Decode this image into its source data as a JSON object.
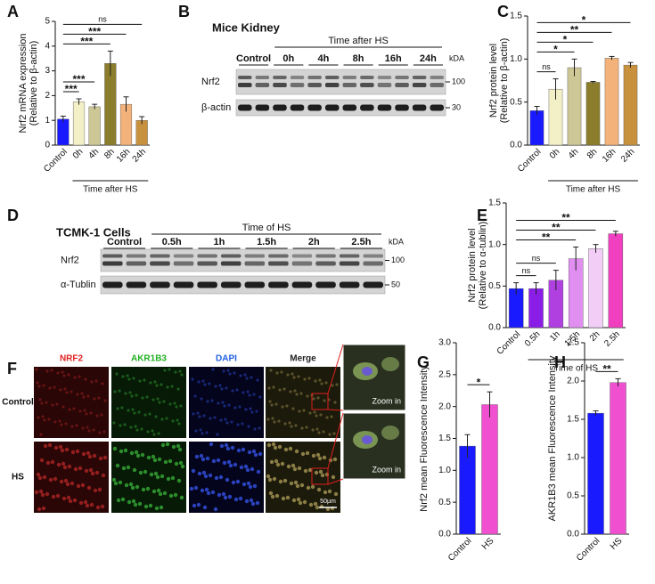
{
  "panels": [
    "A",
    "B",
    "C",
    "D",
    "E",
    "F",
    "G",
    "H"
  ],
  "chart_data": [
    {
      "type": "bar",
      "ylabel": [
        "Nrf2 mRNA expression",
        "(Relative to β-actin)"
      ],
      "categories": [
        "Control",
        "0h",
        "4h",
        "8h",
        "16h",
        "24h"
      ],
      "values": [
        1.05,
        1.75,
        1.55,
        3.3,
        1.65,
        1.0
      ],
      "errors": [
        0.12,
        0.12,
        0.1,
        0.5,
        0.3,
        0.15
      ],
      "colors": [
        "#1a1aff",
        "#f3efc6",
        "#cdc795",
        "#8b7d2b",
        "#f2b27a",
        "#c8913e"
      ],
      "ylim": [
        0,
        5
      ],
      "yticks": [
        0,
        1,
        2,
        3,
        4,
        5
      ],
      "group_label": "Time after HS",
      "annotations": [
        {
          "label": "ns",
          "to": "24h"
        },
        {
          "label": "***",
          "to": "16h"
        },
        {
          "label": "***",
          "to": "8h"
        },
        {
          "label": "***",
          "to": "4h"
        },
        {
          "label": "***",
          "to": "0h"
        }
      ]
    },
    {
      "type": "bar",
      "ylabel": [
        "Nrf2 protein level",
        "(Relative to β-actin)"
      ],
      "categories": [
        "Control",
        "0h",
        "4h",
        "8h",
        "16h",
        "24h"
      ],
      "values": [
        0.4,
        0.65,
        0.9,
        0.73,
        1.01,
        0.93
      ],
      "errors": [
        0.05,
        0.12,
        0.1,
        0.01,
        0.02,
        0.03
      ],
      "colors": [
        "#1a1aff",
        "#f3efc6",
        "#cdc795",
        "#8b7d2b",
        "#f2b27a",
        "#c8913e"
      ],
      "ylim": [
        0,
        1.5
      ],
      "yticks": [
        {
          "value": 0,
          "label": "0.0"
        },
        {
          "value": 0.5,
          "label": "0.5"
        },
        {
          "value": 1,
          "label": "1.0"
        },
        {
          "value": 1.5,
          "label": "1.5"
        }
      ],
      "group_label": "Time after HS",
      "annotations": [
        {
          "label": "*",
          "to": "24h"
        },
        {
          "label": "**",
          "to": "16h"
        },
        {
          "label": "*",
          "to": "8h"
        },
        {
          "label": "*",
          "to": "4h"
        },
        {
          "label": "ns",
          "to": "0h"
        }
      ]
    },
    {
      "type": "bar",
      "ylabel": [
        "Nrf2 protein level",
        "(Relative to α-tublin)"
      ],
      "categories": [
        "Control",
        "0.5h",
        "1h",
        "1.5h",
        "2h",
        "2.5h"
      ],
      "values": [
        0.47,
        0.47,
        0.57,
        0.83,
        0.95,
        1.13
      ],
      "errors": [
        0.07,
        0.07,
        0.12,
        0.14,
        0.05,
        0.03
      ],
      "colors": [
        "#1a1aff",
        "#8a1ee6",
        "#b040e0",
        "#e08ef0",
        "#f2cdf6",
        "#f040c0"
      ],
      "ylim": [
        0,
        1.5
      ],
      "yticks": [
        {
          "value": 0,
          "label": "0.0"
        },
        {
          "value": 0.5,
          "label": "0.5"
        },
        {
          "value": 1,
          "label": "1.0"
        },
        {
          "value": 1.5,
          "label": "1.5"
        }
      ],
      "group_label": "Time of HS",
      "annotations": [
        {
          "label": "**",
          "to": "2.5h"
        },
        {
          "label": "**",
          "to": "2h"
        },
        {
          "label": "**",
          "to": "1.5h"
        },
        {
          "label": "ns",
          "to": "1h"
        },
        {
          "label": "ns",
          "to": "0.5h"
        }
      ]
    },
    {
      "type": "bar",
      "ylabel": [
        "Nrf2 mean Fluorescence Intensity"
      ],
      "categories": [
        "Control",
        "HS"
      ],
      "values": [
        1.38,
        2.03
      ],
      "errors": [
        0.18,
        0.2
      ],
      "colors": [
        "#1a1aff",
        "#f050d0"
      ],
      "ylim": [
        0,
        3
      ],
      "yticks": [
        {
          "value": 0,
          "label": "0.0"
        },
        {
          "value": 0.5,
          "label": "0.5"
        },
        {
          "value": 1,
          "label": "1.0"
        },
        {
          "value": 1.5,
          "label": "1.5"
        },
        {
          "value": 2,
          "label": "2.0"
        },
        {
          "value": 2.5,
          "label": "2.5"
        },
        {
          "value": 3,
          "label": "3.0"
        }
      ],
      "annotations": [
        {
          "label": "*",
          "to": "HS"
        }
      ]
    },
    {
      "type": "bar",
      "ylabel": [
        "AKR1B3 mean Fluorescence Intensity"
      ],
      "categories": [
        "Control",
        "HS"
      ],
      "values": [
        1.58,
        1.98
      ],
      "errors": [
        0.03,
        0.05
      ],
      "colors": [
        "#1a1aff",
        "#f050d0"
      ],
      "ylim": [
        0,
        2.5
      ],
      "yticks": [
        {
          "value": 0,
          "label": "0.0"
        },
        {
          "value": 0.5,
          "label": "0.5"
        },
        {
          "value": 1,
          "label": "1.0"
        },
        {
          "value": 1.5,
          "label": "1.5"
        },
        {
          "value": 2,
          "label": "2.0"
        },
        {
          "value": 2.5,
          "label": "2.5"
        }
      ],
      "annotations": [
        {
          "label": "**",
          "to": "HS"
        }
      ]
    }
  ],
  "blots": [
    {
      "title": "Mice Kidney",
      "header": "Time after HS",
      "lanes": [
        "Control",
        "0h",
        "4h",
        "8h",
        "16h",
        "24h"
      ],
      "unit": "kDA",
      "rows": [
        {
          "name": "Nrf2",
          "marker": "100"
        },
        {
          "name": "β-actin",
          "marker": "30"
        }
      ]
    },
    {
      "title": "TCMK-1 Cells",
      "header": "Time of HS",
      "lanes": [
        "Control",
        "0.5h",
        "1h",
        "1.5h",
        "2h",
        "2.5h"
      ],
      "unit": "kDA",
      "rows": [
        {
          "name": "Nrf2",
          "marker": "100"
        },
        {
          "name": "α-Tublin",
          "marker": "50"
        }
      ]
    }
  ],
  "microscopy": {
    "columns": [
      "NRF2",
      "AKR1B3",
      "DAPI",
      "Merge"
    ],
    "rows": [
      "Control",
      "HS"
    ],
    "zoom": [
      "Zoom in",
      "Zoom in"
    ],
    "scale_bar": "50μm"
  }
}
